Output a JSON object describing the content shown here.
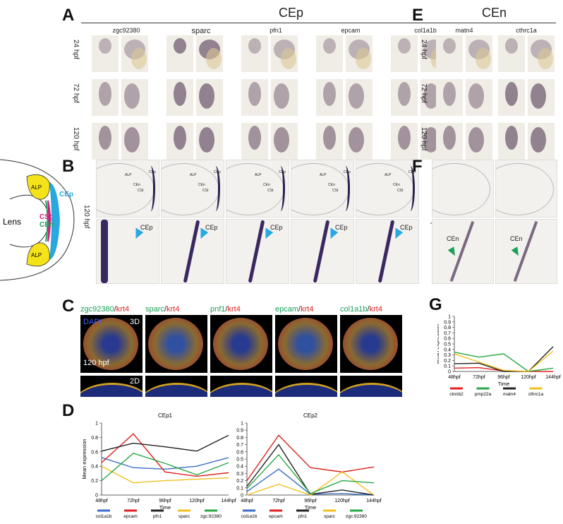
{
  "panels": {
    "A": {
      "letter": "A",
      "header": "CEp",
      "genes": [
        "zgc92380",
        "sparc",
        "pfn1",
        "epcam",
        "col1a1b"
      ],
      "rows": [
        "24 hpf",
        "72 hpf",
        "120 hpf"
      ]
    },
    "B": {
      "letter": "B",
      "row_label": "120 hpf",
      "markers": [
        "ALP",
        "CEp",
        "CEn",
        "CSt"
      ],
      "zoom_label": "CEp"
    },
    "C": {
      "letter": "C",
      "titles": [
        {
          "g": "zgc92380",
          "k": "krt4"
        },
        {
          "g": "sparc",
          "k": "krt4"
        },
        {
          "g": "pnf1",
          "k": "krt4"
        },
        {
          "g": "epcam",
          "k": "krt4"
        },
        {
          "g": "col1a1b",
          "k": "krt4"
        }
      ],
      "dapi": "DAPI",
      "tag3d": "3D",
      "tag2d": "2D",
      "time": "120 hpf"
    },
    "D": {
      "letter": "D"
    },
    "E": {
      "letter": "E",
      "header": "CEn",
      "genes": [
        "matn4",
        "cthrc1a"
      ],
      "rows": [
        "24 hpf",
        "72 hpf",
        "120 hpf"
      ]
    },
    "F": {
      "letter": "F",
      "row_label": "120 hpf",
      "zoom_label": "CEn"
    },
    "G": {
      "letter": "G"
    }
  },
  "schematic": {
    "lens": "Lens",
    "alp": "ALP",
    "cep": "CEp",
    "cst": "CSt",
    "cen": "CEn"
  },
  "colors": {
    "cep": "#29a8e0",
    "cst": "#e0157a",
    "cen": "#1aa05a",
    "alp": "#f5e31a"
  },
  "chart_data": [
    {
      "id": "D1",
      "type": "line",
      "title": "CEp1",
      "xlabel": "Time",
      "ylabel": "Mean expression",
      "categories": [
        "48hpf",
        "72hpf",
        "96hpf",
        "120hpf",
        "144hpf"
      ],
      "ylim": [
        0,
        1
      ],
      "yticks": [
        "0",
        "0.2",
        "0.4",
        "0.6",
        "0.8",
        "1"
      ],
      "x_index": [
        0,
        1,
        2,
        3,
        4
      ],
      "series": [
        {
          "name": "col1a1b",
          "color": "#3a6fc8",
          "values": [
            0.52,
            0.38,
            0.36,
            0.4,
            0.52
          ]
        },
        {
          "name": "epcam",
          "color": "#e02020",
          "values": [
            0.45,
            0.85,
            0.32,
            0.26,
            0.31
          ]
        },
        {
          "name": "pfn1",
          "color": "#222222",
          "values": [
            0.61,
            0.72,
            0.67,
            0.61,
            0.83
          ]
        },
        {
          "name": "sparc",
          "color": "#f2c01e",
          "values": [
            0.4,
            0.17,
            0.2,
            0.22,
            0.24
          ]
        },
        {
          "name": "zgc:92380",
          "color": "#27a845",
          "values": [
            0.2,
            0.58,
            0.44,
            0.28,
            0.45
          ]
        }
      ]
    },
    {
      "id": "D2",
      "type": "line",
      "title": "CEp2",
      "xlabel": "Time",
      "ylabel": "Mean expression",
      "categories": [
        "48hpf",
        "72hpf",
        "96hpf",
        "120hpf",
        "144hpf"
      ],
      "ylim": [
        0,
        1
      ],
      "yticks": [
        "0",
        "0.1",
        "0.2",
        "0.3",
        "0.4",
        "0.5",
        "0.6",
        "0.7",
        "0.8",
        "0.9",
        "1"
      ],
      "series": [
        {
          "name": "col1a1b",
          "color": "#3a6fc8",
          "values": [
            0.05,
            0.36,
            0.01,
            0.02,
            0.0
          ]
        },
        {
          "name": "epcam",
          "color": "#e02020",
          "values": [
            0.2,
            0.83,
            0.38,
            0.32,
            0.39
          ]
        },
        {
          "name": "pfn1",
          "color": "#222222",
          "values": [
            0.12,
            0.7,
            0.01,
            0.07,
            0.0
          ]
        },
        {
          "name": "sparc",
          "color": "#f2c01e",
          "values": [
            0.0,
            0.15,
            0.0,
            0.32,
            0.0
          ]
        },
        {
          "name": "zgc:92380",
          "color": "#27a845",
          "values": [
            0.09,
            0.56,
            0.02,
            0.2,
            0.17
          ]
        }
      ]
    },
    {
      "id": "G",
      "type": "line",
      "xlabel": "Time",
      "ylabel": "Mean expression",
      "categories": [
        "48hpf",
        "72hpf",
        "96hpf",
        "120hpf",
        "144hpf"
      ],
      "ylim": [
        0,
        1
      ],
      "yticks": [
        "0",
        "0.1",
        "0.2",
        "0.3",
        "0.4",
        "0.5",
        "0.6",
        "0.7",
        "0.8",
        "0.9",
        "1"
      ],
      "series": [
        {
          "name": "ctnnb2",
          "color": "#e02020",
          "values": [
            0.06,
            0.07,
            0.01,
            0.0,
            0.0
          ]
        },
        {
          "name": "pmp22a",
          "color": "#27a845",
          "values": [
            0.35,
            0.26,
            0.32,
            0.0,
            0.06
          ]
        },
        {
          "name": "matn4",
          "color": "#222222",
          "values": [
            0.14,
            0.15,
            0.0,
            0.0,
            0.45
          ]
        },
        {
          "name": "cthrc1a",
          "color": "#f2c01e",
          "values": [
            0.32,
            0.17,
            0.02,
            0.0,
            0.37
          ]
        }
      ]
    }
  ]
}
